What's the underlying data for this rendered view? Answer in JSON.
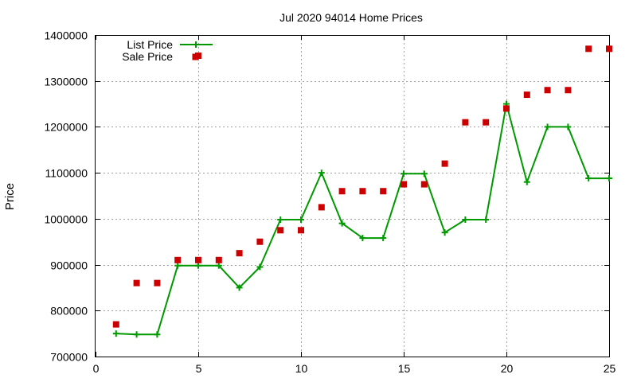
{
  "chart_data": {
    "type": "line",
    "title": "Jul 2020 94014 Home Prices",
    "xlabel": "",
    "ylabel": "Price",
    "xlim": [
      0,
      25
    ],
    "ylim": [
      700000,
      1400000
    ],
    "xticks": [
      "0",
      "5",
      "10",
      "15",
      "20",
      "25"
    ],
    "yticks": [
      "700000",
      "800000",
      "900000",
      "1000000",
      "1100000",
      "1200000",
      "1300000",
      "1400000"
    ],
    "grid": true,
    "legend_position": "top-left",
    "series": [
      {
        "name": "List Price",
        "style": "line-with-plus-markers",
        "color": "#009900",
        "x": [
          1,
          2,
          3,
          4,
          5,
          6,
          7,
          8,
          9,
          10,
          11,
          12,
          13,
          14,
          15,
          16,
          17,
          18,
          19,
          20,
          21,
          22,
          23,
          24,
          25
        ],
        "y": [
          750000,
          748000,
          748000,
          898000,
          898000,
          898000,
          850000,
          895000,
          998000,
          998000,
          1100000,
          990000,
          958000,
          958000,
          1098000,
          1098000,
          970000,
          998000,
          998000,
          1250000,
          1080000,
          1200000,
          1200000,
          1088000,
          1088000
        ]
      },
      {
        "name": "Sale Price",
        "style": "square-markers",
        "color": "#cc0000",
        "x": [
          1,
          2,
          3,
          4,
          5,
          5,
          6,
          7,
          8,
          9,
          10,
          11,
          12,
          13,
          14,
          15,
          16,
          17,
          18,
          19,
          20,
          21,
          22,
          23,
          24,
          25
        ],
        "y": [
          770000,
          860000,
          860000,
          910000,
          910000,
          1355000,
          910000,
          925000,
          950000,
          975000,
          975000,
          1025000,
          1060000,
          1060000,
          1060000,
          1075000,
          1075000,
          1120000,
          1210000,
          1210000,
          1240000,
          1270000,
          1280000,
          1280000,
          1370000,
          1370000
        ]
      }
    ]
  }
}
